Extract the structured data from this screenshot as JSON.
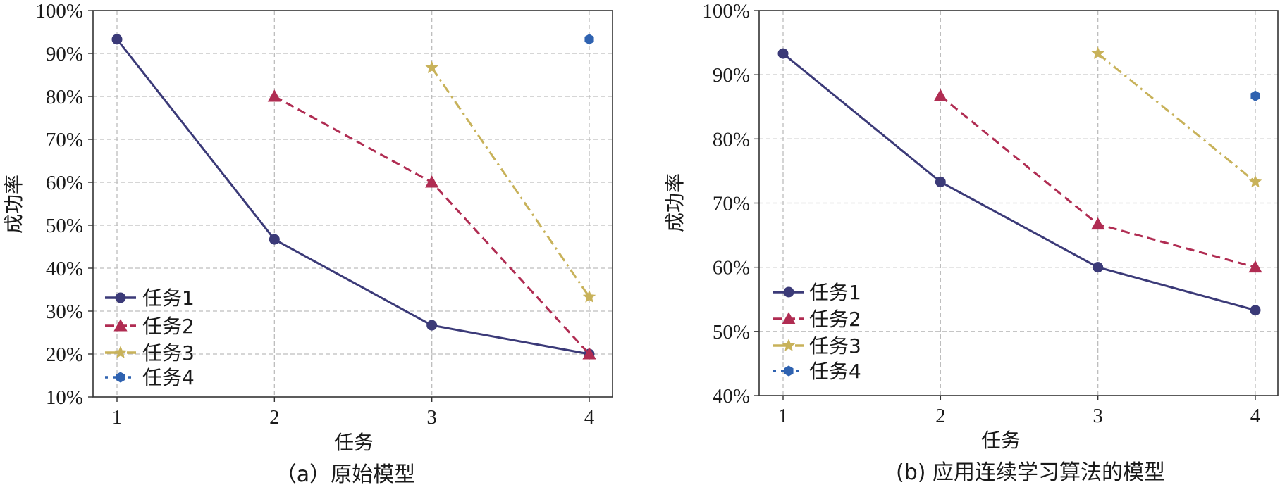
{
  "chart_data": [
    {
      "type": "line",
      "caption": "（a）原始模型",
      "xlabel": "任务",
      "ylabel": "成功率",
      "x": [
        1,
        2,
        3,
        4
      ],
      "x_tick_labels": [
        "1",
        "2",
        "3",
        "4"
      ],
      "ylim": [
        10,
        100
      ],
      "y_ticks": [
        10,
        20,
        30,
        40,
        50,
        60,
        70,
        80,
        90,
        100
      ],
      "y_tick_labels": [
        "10%",
        "20%",
        "30%",
        "40%",
        "50%",
        "60%",
        "70%",
        "80%",
        "90%",
        "100%"
      ],
      "grid": true,
      "legend_position": "lower-left",
      "series": [
        {
          "name": "任务1",
          "x": [
            1,
            2,
            3,
            4
          ],
          "values": [
            93.3,
            46.7,
            26.7,
            20.0
          ],
          "color": "#3b3a78",
          "line_style": "solid",
          "marker": "circle"
        },
        {
          "name": "任务2",
          "x": [
            2,
            3,
            4
          ],
          "values": [
            80.0,
            60.0,
            20.0
          ],
          "color": "#b02c52",
          "line_style": "dashed",
          "marker": "triangle"
        },
        {
          "name": "任务3",
          "x": [
            3,
            4
          ],
          "values": [
            86.7,
            33.3
          ],
          "color": "#c8b25a",
          "line_style": "dashdot",
          "marker": "star"
        },
        {
          "name": "任务4",
          "x": [
            4
          ],
          "values": [
            93.3
          ],
          "color": "#2f62b0",
          "line_style": "dotted",
          "marker": "hexagon"
        }
      ]
    },
    {
      "type": "line",
      "caption": "(b) 应用连续学习算法的模型",
      "xlabel": "任务",
      "ylabel": "成功率",
      "x": [
        1,
        2,
        3,
        4
      ],
      "x_tick_labels": [
        "1",
        "2",
        "3",
        "4"
      ],
      "ylim": [
        40,
        100
      ],
      "y_ticks": [
        40,
        50,
        60,
        70,
        80,
        90,
        100
      ],
      "y_tick_labels": [
        "40%",
        "50%",
        "60%",
        "70%",
        "80%",
        "90%",
        "100%"
      ],
      "grid": true,
      "legend_position": "lower-left",
      "series": [
        {
          "name": "任务1",
          "x": [
            1,
            2,
            3,
            4
          ],
          "values": [
            93.3,
            73.3,
            60.0,
            53.3
          ],
          "color": "#3b3a78",
          "line_style": "solid",
          "marker": "circle"
        },
        {
          "name": "任务2",
          "x": [
            2,
            3,
            4
          ],
          "values": [
            86.7,
            66.7,
            60.0
          ],
          "color": "#b02c52",
          "line_style": "dashed",
          "marker": "triangle"
        },
        {
          "name": "任务3",
          "x": [
            3,
            4
          ],
          "values": [
            93.3,
            73.3
          ],
          "color": "#c8b25a",
          "line_style": "dashdot",
          "marker": "star"
        },
        {
          "name": "任务4",
          "x": [
            4
          ],
          "values": [
            86.7
          ],
          "color": "#2f62b0",
          "line_style": "dotted",
          "marker": "hexagon"
        }
      ]
    }
  ]
}
